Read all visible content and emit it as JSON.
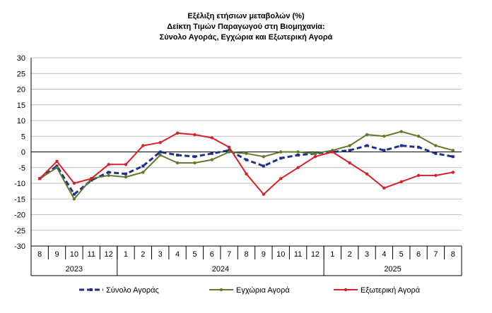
{
  "chart_data": {
    "type": "line",
    "title_lines": [
      "Εξέλιξη ετήσιων μεταβολών (%)",
      "Δείκτη Τιμών Παραγωγού στη Βιομηχανία:",
      "Σύνολο Αγοράς, Εγχώρια και Εξωτερική Αγορά"
    ],
    "ylim": [
      -30,
      30
    ],
    "y_ticks": [
      "30",
      "25",
      "20",
      "15",
      "10",
      "5",
      "0",
      "-5",
      "-10",
      "-15",
      "-20",
      "-25",
      "-30"
    ],
    "grid": true,
    "legend_position": "bottom",
    "months": [
      "8",
      "9",
      "10",
      "11",
      "12",
      "1",
      "2",
      "3",
      "4",
      "5",
      "6",
      "7",
      "8",
      "9",
      "10",
      "11",
      "12",
      "1",
      "2",
      "3",
      "4",
      "5",
      "6",
      "7",
      "8"
    ],
    "years": [
      {
        "label": "2023",
        "start": 0,
        "count": 5
      },
      {
        "label": "2024",
        "start": 5,
        "count": 12
      },
      {
        "label": "2025",
        "start": 17,
        "count": 8
      }
    ],
    "series": [
      {
        "name": "Σύνολο Αγοράς",
        "color": "#1f2f8f",
        "style": "dashed",
        "values": [
          -8.5,
          -4.5,
          -13.5,
          -9.0,
          -6.5,
          -7.0,
          -4.5,
          0.0,
          -1.0,
          -1.5,
          -0.5,
          0.5,
          -2.5,
          -4.5,
          -2.0,
          -1.0,
          -0.5,
          0.0,
          0.5,
          2.0,
          0.5,
          2.0,
          1.5,
          -0.5,
          -1.5
        ]
      },
      {
        "name": "Εγχώρια Αγορά",
        "color": "#5f7a2a",
        "style": "solid",
        "values": [
          -8.5,
          -5.0,
          -15.0,
          -8.5,
          -7.5,
          -8.0,
          -6.5,
          -1.0,
          -3.5,
          -3.5,
          -2.5,
          0.0,
          -0.5,
          -1.5,
          0.0,
          0.0,
          -0.5,
          0.5,
          2.0,
          5.5,
          5.0,
          6.5,
          5.0,
          2.0,
          0.5
        ]
      },
      {
        "name": "Εξωτερική Αγορά",
        "color": "#d8202a",
        "style": "solid",
        "values": [
          -8.5,
          -3.0,
          -10.0,
          -8.5,
          -4.0,
          -4.0,
          2.0,
          3.0,
          6.0,
          5.5,
          4.5,
          1.5,
          -7.0,
          -13.5,
          -8.5,
          -5.0,
          -1.5,
          0.0,
          -3.5,
          -7.0,
          -11.5,
          -9.5,
          -7.5,
          -7.5,
          -6.5
        ]
      }
    ]
  }
}
